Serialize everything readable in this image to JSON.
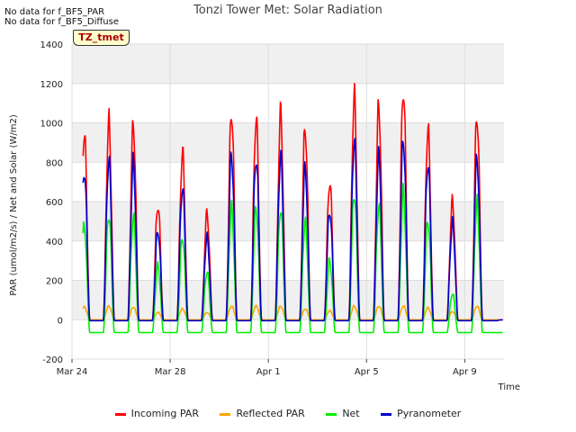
{
  "header": {
    "nodata_1": "No data for f_BF5_PAR",
    "nodata_2": "No data for f_BF5_Diffuse",
    "badge": "TZ_tmet"
  },
  "chart_data": {
    "type": "line",
    "title": "Tonzi Tower Met: Solar Radiation",
    "xlabel": "Time",
    "ylabel": "PAR (umol/m2/s) / Net and Solar (W/m2)",
    "ylim": [
      -200,
      1400
    ],
    "yticks": [
      -200,
      0,
      200,
      400,
      600,
      800,
      1000,
      1200,
      1400
    ],
    "xlim": [
      0,
      17.6
    ],
    "xticks": [
      {
        "day": 0,
        "label": "Mar 24"
      },
      {
        "day": 4,
        "label": "Mar 28"
      },
      {
        "day": 8,
        "label": "Apr 1"
      },
      {
        "day": 12,
        "label": "Apr 5"
      },
      {
        "day": 16,
        "label": "Apr 9"
      }
    ],
    "grid": true,
    "legend_position": "bottom",
    "days": [
      "Mar 24",
      "Mar 25",
      "Mar 26",
      "Mar 27",
      "Mar 28",
      "Mar 29",
      "Mar 30",
      "Mar 31",
      "Apr 1",
      "Apr 2",
      "Apr 3",
      "Apr 4",
      "Apr 5",
      "Apr 6",
      "Apr 7",
      "Apr 8",
      "Apr 9",
      "Apr 10"
    ],
    "series": [
      {
        "name": "Incoming PAR",
        "color": "#ff0000",
        "night": 0,
        "daily_peak": [
          1030,
          1080,
          1070,
          630,
          915,
          580,
          1145,
          1105,
          1130,
          1050,
          760,
          1220,
          1165,
          1270,
          1040,
          645,
          1120,
          0
        ]
      },
      {
        "name": "Reflected PAR",
        "color": "#ffa500",
        "night": 0,
        "daily_peak": [
          70,
          75,
          70,
          40,
          60,
          40,
          75,
          75,
          75,
          60,
          50,
          75,
          75,
          75,
          65,
          45,
          75,
          0
        ]
      },
      {
        "name": "Net",
        "color": "#00ee00",
        "night": -65,
        "daily_peak": [
          520,
          585,
          570,
          300,
          460,
          270,
          620,
          620,
          620,
          540,
          330,
          700,
          630,
          700,
          550,
          150,
          640,
          -65
        ]
      },
      {
        "name": "Pyranometer",
        "color": "#0000cc",
        "night": -5,
        "daily_peak": [
          820,
          875,
          855,
          490,
          730,
          450,
          905,
          890,
          895,
          830,
          600,
          985,
          895,
          990,
          860,
          530,
          880,
          0
        ]
      }
    ]
  }
}
